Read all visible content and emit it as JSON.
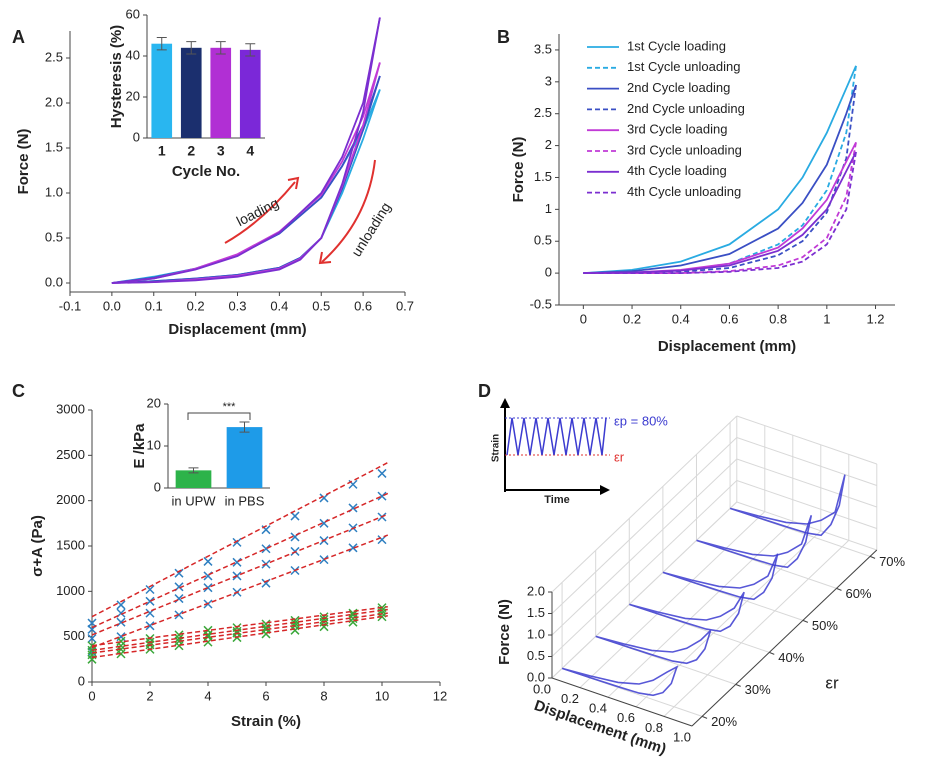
{
  "chart_data": [
    {
      "panel": "A",
      "type": "line",
      "xlabel": "Displacement (mm)",
      "ylabel": "Force (N)",
      "xlim": [
        -0.1,
        0.7
      ],
      "xticks": [
        -0.1,
        {
          "value": 0,
          "label": "0.0"
        },
        0.1,
        0.2,
        0.3,
        0.4,
        0.5,
        0.6,
        0.7
      ],
      "ylim": [
        -0.1,
        2.8
      ],
      "yticks": [
        {
          "value": 0,
          "label": "0.0"
        },
        0.5,
        {
          "value": 1,
          "label": "1.0"
        },
        1.5,
        {
          "value": 2,
          "label": "2.0"
        },
        2.5
      ],
      "annotations": [
        "loading",
        "unloading"
      ],
      "series": [
        {
          "color": "#29abe2",
          "x": [
            0,
            0.1,
            0.2,
            0.3,
            0.4,
            0.5,
            0.55,
            0.6,
            0.64
          ],
          "values": [
            0,
            0.07,
            0.16,
            0.31,
            0.55,
            0.95,
            1.3,
            1.7,
            2.15
          ]
        },
        {
          "color": "#29abe2",
          "x": [
            0.64,
            0.6,
            0.55,
            0.5,
            0.45,
            0.4,
            0.3,
            0.2,
            0.1,
            0
          ],
          "values": [
            2.15,
            1.6,
            1.0,
            0.5,
            0.28,
            0.17,
            0.09,
            0.05,
            0.02,
            0
          ]
        },
        {
          "color": "#3a4fc4",
          "x": [
            0,
            0.1,
            0.2,
            0.3,
            0.4,
            0.5,
            0.55,
            0.6,
            0.64
          ],
          "values": [
            0,
            0.06,
            0.16,
            0.31,
            0.55,
            0.95,
            1.3,
            1.75,
            2.3
          ]
        },
        {
          "color": "#3a4fc4",
          "x": [
            0.64,
            0.6,
            0.55,
            0.5,
            0.45,
            0.4,
            0.3,
            0.2,
            0.1,
            0
          ],
          "values": [
            2.3,
            1.7,
            1.05,
            0.5,
            0.28,
            0.17,
            0.09,
            0.05,
            0.02,
            0
          ]
        },
        {
          "color": "#c13ad6",
          "x": [
            0,
            0.1,
            0.2,
            0.3,
            0.4,
            0.5,
            0.55,
            0.6,
            0.64
          ],
          "values": [
            0,
            0.05,
            0.16,
            0.32,
            0.57,
            0.98,
            1.35,
            1.85,
            2.45
          ]
        },
        {
          "color": "#c13ad6",
          "x": [
            0.64,
            0.6,
            0.55,
            0.5,
            0.45,
            0.4,
            0.3,
            0.2,
            0.1,
            0
          ],
          "values": [
            2.45,
            1.75,
            1.08,
            0.5,
            0.27,
            0.16,
            0.08,
            0.04,
            0.01,
            0
          ]
        },
        {
          "color": "#7b2fd0",
          "x": [
            0,
            0.1,
            0.2,
            0.3,
            0.4,
            0.5,
            0.55,
            0.6,
            0.64
          ],
          "values": [
            0,
            0.05,
            0.15,
            0.3,
            0.56,
            1.0,
            1.4,
            2.0,
            2.95
          ]
        },
        {
          "color": "#7b2fd0",
          "x": [
            0.64,
            0.6,
            0.55,
            0.5,
            0.45,
            0.4,
            0.3,
            0.2,
            0.1,
            0
          ],
          "values": [
            2.95,
            1.9,
            1.1,
            0.5,
            0.26,
            0.15,
            0.07,
            0.03,
            0.01,
            0
          ]
        }
      ]
    },
    {
      "type": "bar",
      "ylabel": "Hysteresis (%)",
      "xlabel": "Cycle No.",
      "categories": [
        "1",
        "2",
        "3",
        "4"
      ],
      "values": [
        46,
        44,
        44,
        43
      ],
      "errors": [
        3,
        3,
        3,
        3
      ],
      "colors": [
        "#29b6f0",
        "#1b2f6e",
        "#b12fd4",
        "#7b28d8"
      ],
      "ylim": [
        0,
        60
      ],
      "yticks": [
        0,
        20,
        40,
        60
      ]
    },
    {
      "panel": "B",
      "type": "line",
      "xlabel": "Displacement (mm)",
      "ylabel": "Force (N)",
      "xlim": [
        -0.1,
        1.28
      ],
      "xticks": [
        0,
        0.2,
        0.4,
        0.6,
        0.8,
        1,
        1.2
      ],
      "ylim": [
        -0.5,
        3.75
      ],
      "yticks": [
        -0.5,
        0,
        0.5,
        1,
        1.5,
        2,
        2.5,
        3,
        3.5
      ],
      "legend": "upper left",
      "series": [
        {
          "name": "1st Cycle loading",
          "color": "#29abe2",
          "dashed": false,
          "x": [
            0,
            0.2,
            0.4,
            0.6,
            0.8,
            0.9,
            1,
            1.08,
            1.12
          ],
          "values": [
            0,
            0.05,
            0.18,
            0.45,
            1.0,
            1.5,
            2.2,
            2.9,
            3.25
          ]
        },
        {
          "name": "1st Cycle unloading",
          "color": "#29abe2",
          "dashed": true,
          "x": [
            1.12,
            1.08,
            1,
            0.9,
            0.8,
            0.6,
            0.4,
            0.2,
            0
          ],
          "values": [
            3.25,
            2.2,
            1.3,
            0.75,
            0.45,
            0.15,
            0.04,
            0.01,
            0
          ]
        },
        {
          "name": "2nd Cycle loading",
          "color": "#3a4fc4",
          "dashed": false,
          "x": [
            0,
            0.2,
            0.4,
            0.6,
            0.8,
            0.9,
            1,
            1.08,
            1.12
          ],
          "values": [
            0,
            0.03,
            0.12,
            0.3,
            0.7,
            1.1,
            1.7,
            2.5,
            2.95
          ]
        },
        {
          "name": "2nd Cycle unloading",
          "color": "#3a4fc4",
          "dashed": true,
          "x": [
            1.12,
            1.08,
            1,
            0.9,
            0.8,
            0.6,
            0.4,
            0.2,
            0
          ],
          "values": [
            2.95,
            1.8,
            0.95,
            0.5,
            0.28,
            0.08,
            0.02,
            0,
            0
          ]
        },
        {
          "name": "3rd Cycle loading",
          "color": "#c13ad6",
          "dashed": false,
          "x": [
            0,
            0.2,
            0.4,
            0.6,
            0.8,
            0.9,
            1,
            1.08,
            1.12
          ],
          "values": [
            0,
            0.01,
            0.05,
            0.15,
            0.4,
            0.7,
            1.15,
            1.75,
            2.05
          ]
        },
        {
          "name": "3rd Cycle unloading",
          "color": "#c13ad6",
          "dashed": true,
          "x": [
            1.12,
            1.08,
            1,
            0.9,
            0.8,
            0.6,
            0.4,
            0.2,
            0
          ],
          "values": [
            2.05,
            1.2,
            0.55,
            0.25,
            0.12,
            0.03,
            0,
            0,
            0
          ]
        },
        {
          "name": "4th Cycle loading",
          "color": "#7b2fd0",
          "dashed": false,
          "x": [
            0,
            0.2,
            0.4,
            0.6,
            0.8,
            0.9,
            1,
            1.08,
            1.12
          ],
          "values": [
            0,
            0.01,
            0.04,
            0.12,
            0.35,
            0.6,
            1.0,
            1.6,
            1.9
          ]
        },
        {
          "name": "4th Cycle unloading",
          "color": "#7b2fd0",
          "dashed": true,
          "x": [
            1.12,
            1.08,
            1,
            0.9,
            0.8,
            0.6,
            0.4,
            0.2,
            0
          ],
          "values": [
            1.9,
            1.0,
            0.45,
            0.18,
            0.08,
            0.02,
            0,
            0,
            0
          ]
        }
      ]
    },
    {
      "panel": "C",
      "type": "scatter",
      "xlabel": "Strain (%)",
      "ylabel": "σ+A (Pa)",
      "x": [
        0,
        1,
        2,
        3,
        4,
        5,
        6,
        7,
        8,
        9,
        10
      ],
      "xlim": [
        0,
        12
      ],
      "xticks": [
        0,
        2,
        4,
        6,
        8,
        10,
        12
      ],
      "ylim": [
        0,
        3000
      ],
      "yticks": [
        0,
        500,
        1000,
        1500,
        2000,
        2500,
        3000
      ],
      "series": [
        {
          "color": "#2e7fc1",
          "values": [
            650,
            850,
            1020,
            1200,
            1330,
            1540,
            1680,
            1830,
            2030,
            2180,
            2300
          ]
        },
        {
          "color": "#2e7fc1",
          "values": [
            580,
            760,
            890,
            1050,
            1170,
            1320,
            1470,
            1600,
            1750,
            1920,
            2050
          ]
        },
        {
          "color": "#2e7fc1",
          "values": [
            480,
            660,
            760,
            920,
            1040,
            1170,
            1300,
            1440,
            1560,
            1700,
            1820
          ]
        },
        {
          "color": "#2e7fc1",
          "values": [
            330,
            500,
            620,
            740,
            860,
            990,
            1090,
            1230,
            1350,
            1480,
            1570
          ]
        },
        {
          "color": "#3aa83a",
          "values": [
            400,
            450,
            480,
            520,
            570,
            600,
            640,
            680,
            720,
            760,
            820
          ]
        },
        {
          "color": "#3aa83a",
          "values": [
            350,
            400,
            440,
            480,
            520,
            560,
            600,
            650,
            690,
            740,
            790
          ]
        },
        {
          "color": "#3aa83a",
          "values": [
            300,
            360,
            410,
            450,
            500,
            540,
            580,
            620,
            660,
            700,
            760
          ]
        },
        {
          "color": "#3aa83a",
          "values": [
            250,
            310,
            360,
            400,
            440,
            490,
            530,
            570,
            610,
            660,
            720
          ]
        }
      ],
      "fit_x": [
        0,
        10.2
      ],
      "fit_color": "#d62728",
      "fits": [
        [
          720,
          2420
        ],
        [
          600,
          2080
        ],
        [
          520,
          1850
        ],
        [
          380,
          1620
        ],
        [
          400,
          830
        ],
        [
          350,
          800
        ],
        [
          320,
          760
        ],
        [
          270,
          730
        ]
      ]
    },
    {
      "type": "bar",
      "ylabel": "E /kPa",
      "categories": [
        "in UPW",
        "in PBS"
      ],
      "values": [
        4.2,
        14.5
      ],
      "errors": [
        0.6,
        1.2
      ],
      "colors": [
        "#2db34a",
        "#1e9be8"
      ],
      "ylim": [
        0,
        20
      ],
      "yticks": [
        0,
        10,
        20
      ],
      "annotations": [
        "***"
      ]
    },
    {
      "panel": "D",
      "type": "line3d",
      "xlabel": "Displacement (mm)",
      "ylabel": "Force  (N)",
      "zlabel": "εr",
      "xlim": [
        0,
        1
      ],
      "xticks": [
        {
          "value": 0,
          "label": "0.0"
        },
        0.2,
        0.4,
        0.6,
        0.8,
        {
          "value": 1,
          "label": "1.0"
        }
      ],
      "ylim": [
        0,
        2
      ],
      "yticks": [
        {
          "value": 0,
          "label": "0.0"
        },
        0.5,
        {
          "value": 1,
          "label": "1.0"
        },
        1.5,
        {
          "value": 2,
          "label": "2.0"
        }
      ],
      "zlim": [
        17,
        72
      ],
      "zticks": [
        {
          "value": 20,
          "label": "20%"
        },
        {
          "value": 30,
          "label": "30%"
        },
        {
          "value": 40,
          "label": "40%"
        },
        {
          "value": 50,
          "label": "50%"
        },
        {
          "value": 60,
          "label": "60%"
        },
        {
          "value": 70,
          "label": "70%"
        }
      ],
      "color": "#3b3bd0",
      "x": [
        0,
        0.2,
        0.4,
        0.55,
        0.65,
        0.75,
        0.82,
        0.78,
        0.72,
        0.65,
        0.55,
        0.4,
        0.2,
        0
      ],
      "series": [
        {
          "z": 20,
          "values": [
            0,
            0.05,
            0.12,
            0.25,
            0.45,
            0.75,
            0.95,
            0.52,
            0.24,
            0.1,
            0.04,
            0.02,
            0.01,
            0
          ]
        },
        {
          "z": 30,
          "values": [
            0,
            0.05,
            0.12,
            0.25,
            0.45,
            0.75,
            1.05,
            0.58,
            0.26,
            0.1,
            0.04,
            0.02,
            0.01,
            0
          ]
        },
        {
          "z": 40,
          "values": [
            0,
            0.05,
            0.12,
            0.25,
            0.45,
            0.75,
            1.2,
            0.66,
            0.3,
            0.1,
            0.04,
            0.02,
            0.01,
            0
          ]
        },
        {
          "z": 50,
          "values": [
            0,
            0.05,
            0.12,
            0.25,
            0.45,
            0.75,
            1.35,
            0.74,
            0.34,
            0.1,
            0.04,
            0.02,
            0.01,
            0
          ]
        },
        {
          "z": 60,
          "values": [
            0,
            0.05,
            0.12,
            0.25,
            0.45,
            0.75,
            1.5,
            0.83,
            0.38,
            0.1,
            0.04,
            0.02,
            0.01,
            0
          ]
        },
        {
          "z": 70,
          "values": [
            0,
            0.05,
            0.12,
            0.25,
            0.45,
            0.75,
            1.7,
            0.94,
            0.43,
            0.1,
            0.04,
            0.02,
            0.01,
            0
          ]
        }
      ],
      "inset": {
        "ylabel": "Strain",
        "xlabel": "Time",
        "annotations": [
          "εp = 80%",
          "εr"
        ],
        "annotation_colors": [
          "#3b3bd0",
          "#e0312f"
        ]
      }
    }
  ]
}
